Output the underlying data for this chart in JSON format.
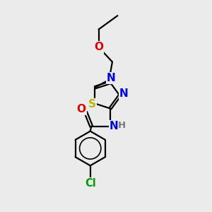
{
  "bg_color": "#ebebeb",
  "bond_color": "#000000",
  "atom_colors": {
    "S": "#b8b800",
    "N": "#0000dd",
    "O": "#dd0000",
    "Cl": "#009900",
    "H": "#777777",
    "C": "#000000"
  },
  "font_size": 9.5,
  "bond_width": 1.6,
  "figsize": [
    3.0,
    3.0
  ],
  "dpi": 100,
  "xlim": [
    0,
    10
  ],
  "ylim": [
    0,
    10
  ]
}
